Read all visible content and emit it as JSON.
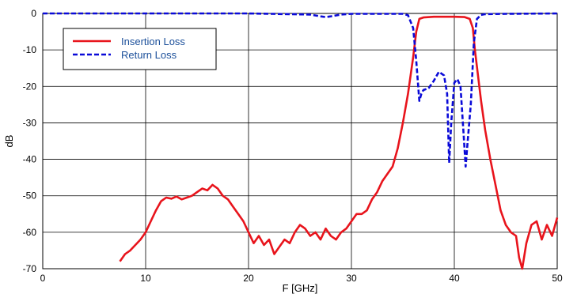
{
  "chart_data": {
    "type": "line",
    "title": "",
    "xlabel": "F [GHz]",
    "ylabel": "dB",
    "xlim": [
      0,
      50
    ],
    "ylim": [
      -70,
      0
    ],
    "xticks": [
      0,
      10,
      20,
      30,
      40,
      50
    ],
    "yticks": [
      0,
      -10,
      -20,
      -30,
      -40,
      -50,
      -60,
      -70
    ],
    "grid": true,
    "legend": "top-left",
    "series": [
      {
        "name": "Insertion Loss",
        "color": "#e8141c",
        "style": "solid",
        "x": [
          7.5,
          8,
          8.5,
          9,
          9.5,
          10,
          10.5,
          11,
          11.5,
          12,
          12.5,
          13,
          13.5,
          14,
          14.5,
          15,
          15.5,
          16,
          16.5,
          17,
          17.5,
          18,
          18.5,
          19,
          19.5,
          20,
          20.5,
          21,
          21.5,
          22,
          22.5,
          23,
          23.5,
          24,
          24.5,
          25,
          25.5,
          26,
          26.5,
          27,
          27.5,
          28,
          28.5,
          29,
          29.5,
          30,
          30.5,
          31,
          31.5,
          32,
          32.5,
          33,
          33.5,
          34,
          34.5,
          35,
          35.5,
          36,
          36.3,
          36.6,
          37,
          38,
          39,
          40,
          41,
          41.5,
          41.8,
          42,
          42.3,
          42.6,
          43,
          43.5,
          44,
          44.5,
          45,
          45.5,
          46,
          46.3,
          46.6,
          47,
          47.5,
          48,
          48.5,
          49,
          49.5,
          50
        ],
        "y": [
          -68,
          -66,
          -65,
          -63.5,
          -62,
          -60,
          -57,
          -54,
          -51.5,
          -50.5,
          -50.8,
          -50.2,
          -51,
          -50.5,
          -50,
          -49,
          -48,
          -48.5,
          -47,
          -48,
          -50,
          -51,
          -53,
          -55,
          -57,
          -60,
          -63,
          -61,
          -63.5,
          -62,
          -66,
          -64,
          -62,
          -63,
          -60,
          -58,
          -59,
          -61,
          -60,
          -62,
          -59,
          -61,
          -62,
          -60,
          -59,
          -57,
          -55,
          -55,
          -54,
          -51,
          -49,
          -46,
          -44,
          -42,
          -37,
          -30,
          -22,
          -12,
          -5,
          -1.5,
          -1.1,
          -0.9,
          -0.9,
          -0.9,
          -1,
          -1.5,
          -4,
          -10,
          -17,
          -24,
          -32,
          -40,
          -47,
          -54,
          -58,
          -60,
          -61,
          -67,
          -70,
          -63,
          -58,
          -57,
          -62,
          -58,
          -61,
          -56
        ]
      },
      {
        "name": "Return Loss",
        "color": "#0a0ad8",
        "style": "dashed",
        "x": [
          0,
          10,
          20,
          26,
          27,
          27.5,
          28,
          29,
          30,
          35,
          35.5,
          36,
          36.3,
          36.6,
          36.8,
          37,
          37.5,
          38,
          38.5,
          39,
          39.3,
          39.5,
          39.7,
          40,
          40.3,
          40.6,
          40.9,
          41.1,
          41.3,
          41.6,
          41.9,
          42.2,
          42.6,
          43,
          45,
          50
        ],
        "y": [
          0,
          0,
          0,
          -0.3,
          -0.8,
          -1,
          -0.8,
          -0.3,
          -0.1,
          -0.1,
          -0.5,
          -4,
          -13,
          -24,
          -22,
          -21,
          -20.5,
          -18.5,
          -16,
          -17,
          -22,
          -41,
          -30,
          -19,
          -18,
          -20,
          -33,
          -42,
          -35,
          -25,
          -8,
          -1.5,
          -0.4,
          -0.2,
          -0.1,
          0
        ]
      }
    ]
  }
}
